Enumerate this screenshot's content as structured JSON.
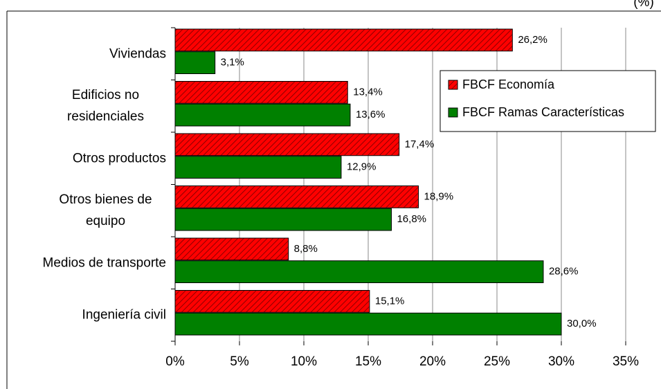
{
  "chart_data": {
    "type": "bar",
    "orientation": "horizontal",
    "subtitle": "(%)",
    "categories": [
      "Viviendas",
      "Edificios no residenciales",
      "Otros productos",
      "Otros bienes de equipo",
      "Medios de transporte",
      "Ingeniería civil"
    ],
    "series": [
      {
        "name": "FBCF Economía",
        "color": "#ff0000",
        "hatch": true,
        "values": [
          26.2,
          13.4,
          17.4,
          18.9,
          8.8,
          15.1
        ],
        "value_labels": [
          "26,2%",
          "13,4%",
          "17,4%",
          "18,9%",
          "8,8%",
          "15,1%"
        ]
      },
      {
        "name": "FBCF Ramas Características",
        "color": "#008000",
        "values": [
          3.1,
          13.6,
          12.9,
          16.8,
          28.6,
          30.0
        ],
        "value_labels": [
          "3,1%",
          "13,6%",
          "12,9%",
          "16,8%",
          "28,6%",
          "30,0%"
        ]
      }
    ],
    "xlim": [
      0,
      35
    ],
    "xticks": [
      {
        "value": 0,
        "label": "0%"
      },
      {
        "value": 5,
        "label": "5%"
      },
      {
        "value": 10,
        "label": "10%"
      },
      {
        "value": 15,
        "label": "15%"
      },
      {
        "value": 20,
        "label": "20%"
      },
      {
        "value": 25,
        "label": "25%"
      },
      {
        "value": 30,
        "label": "30%"
      },
      {
        "value": 35,
        "label": "35%"
      }
    ],
    "grid": true,
    "legend": "upper right"
  }
}
